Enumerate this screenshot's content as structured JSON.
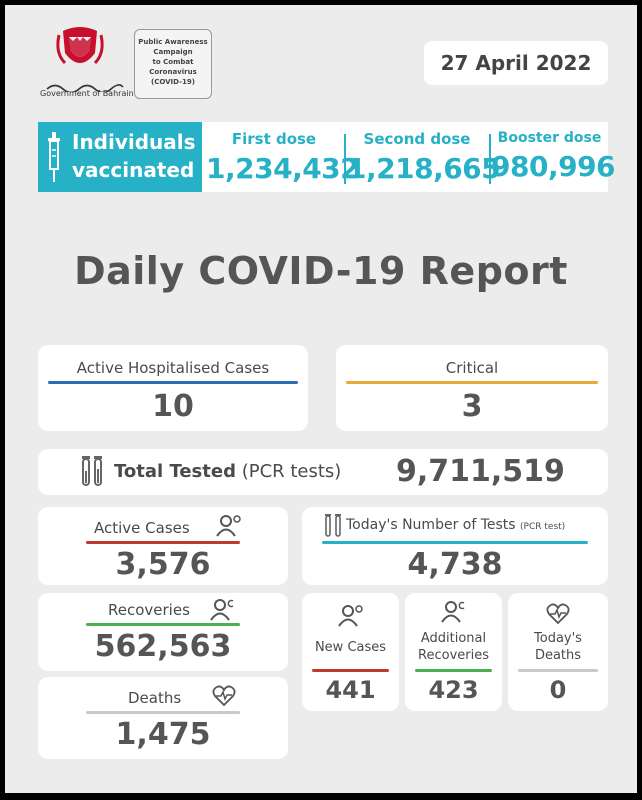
{
  "header": {
    "gov_caption": "Government of Bahrain",
    "campaign_lines": [
      "Public Awareness",
      "Campaign",
      "to Combat",
      "Coronavirus",
      "(COVID-19)"
    ],
    "date": "27 April 2022"
  },
  "vaccination": {
    "label_line1": "Individuals",
    "label_line2": "vaccinated",
    "first_label": "First dose",
    "first_value": "1,234,432",
    "second_label": "Second dose",
    "second_value": "1,218,665",
    "booster_label": "Booster dose",
    "booster_value": "980,996"
  },
  "report_title": "Daily COVID-19 Report",
  "hospitalised": {
    "label": "Active Hospitalised Cases",
    "value": "10"
  },
  "critical": {
    "label": "Critical",
    "value": "3"
  },
  "total_tested": {
    "label": "Total Tested",
    "suffix": "(PCR tests)",
    "value": "9,711,519"
  },
  "active_cases": {
    "label": "Active Cases",
    "value": "3,576"
  },
  "todays_tests": {
    "label": "Today's Number of Tests",
    "suffix": "(PCR test)",
    "value": "4,738"
  },
  "recoveries": {
    "label": "Recoveries",
    "value": "562,563"
  },
  "deaths": {
    "label": "Deaths",
    "value": "1,475"
  },
  "new_cases": {
    "label": "New Cases",
    "value": "441"
  },
  "additional_recoveries": {
    "label_line1": "Additional",
    "label_line2": "Recoveries",
    "value": "423"
  },
  "todays_deaths": {
    "label_line1": "Today's",
    "label_line2": "Deaths",
    "value": "0"
  },
  "colors": {
    "teal": "#26b1c6",
    "blue": "#2e6db4",
    "yellow": "#e8a93a",
    "red": "#c0392b",
    "green": "#4caf50",
    "text": "#555555"
  },
  "icons": [
    "bahrain-emblem-icon",
    "syringe-icon",
    "test-tube-icon",
    "person-virus-icon",
    "heart-pulse-icon"
  ]
}
